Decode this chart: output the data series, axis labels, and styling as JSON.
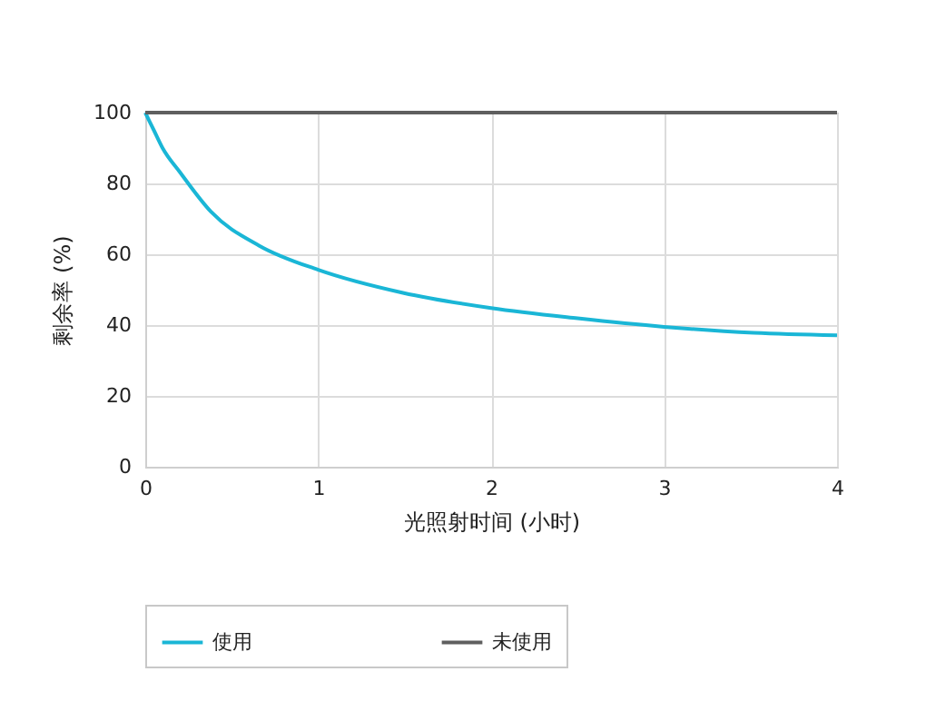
{
  "chart_data": {
    "type": "line",
    "xlabel": "光照射时间 (小时)",
    "ylabel": "剩余率 (%)",
    "xlim": [
      0,
      4
    ],
    "xticks": [
      0,
      1,
      2,
      3,
      4
    ],
    "ylim": [
      0,
      100
    ],
    "yticks": [
      0,
      20,
      40,
      60,
      80,
      100
    ],
    "grid": true,
    "legend": "bottom",
    "marker": "none",
    "line_style": "solid",
    "series": [
      {
        "name": "使用",
        "color": "#1ab6d6",
        "x": [
          0,
          0.05,
          0.1,
          0.2,
          0.38,
          0.66,
          1,
          1.49,
          2,
          2.5,
          3,
          3.52,
          4
        ],
        "values": [
          100,
          95,
          90,
          83.2,
          72,
          62.4,
          55.6,
          49.1,
          44.8,
          41.9,
          39.5,
          37.8,
          37.1
        ]
      },
      {
        "name": "未使用",
        "color": "#5f5f5f",
        "x": [
          0,
          4
        ],
        "values": [
          100,
          100
        ]
      }
    ]
  }
}
